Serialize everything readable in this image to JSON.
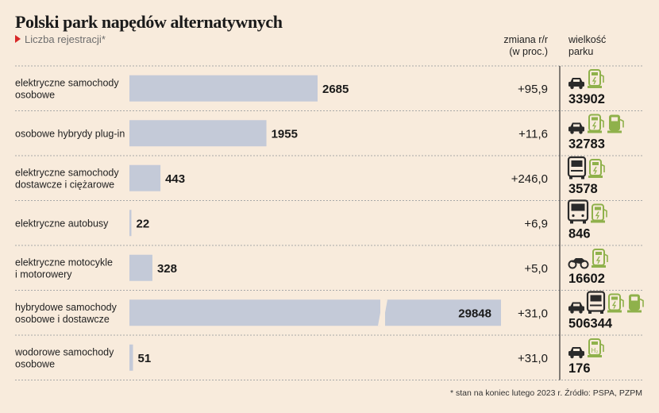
{
  "title": "Polski park napędów alternatywnych",
  "subtitle": "Liczba rejestracji*",
  "headers": {
    "change_line1": "zmiana r/r",
    "change_line2": "(w proc.)",
    "fleet_line1": "wielkość",
    "fleet_line2": "parku"
  },
  "footnote": "* stan na koniec lutego 2023 r. Źródło: PSPA, PZPM",
  "colors": {
    "background": "#f8ebdc",
    "bar": "#c4cad8",
    "icon_green": "#8fb14b",
    "title_marker": "#d72727",
    "divider": "#a8a8a8"
  },
  "chart_data": {
    "type": "bar",
    "orientation": "horizontal",
    "axis_break": true,
    "grid": false,
    "categories": [
      [
        "elektryczne samochody",
        "osobowe"
      ],
      [
        "osobowe hybrydy plug-in"
      ],
      [
        "elektryczne samochody",
        "dostawcze i ciężarowe"
      ],
      [
        "elektryczne autobusy"
      ],
      [
        "elektryczne motocykle",
        "i motorowery"
      ],
      [
        "hybrydowe samochody",
        "osobowe i dostawcze"
      ],
      [
        "wodorowe samochody",
        "osobowe"
      ]
    ],
    "values": [
      2685,
      1955,
      443,
      22,
      328,
      29848,
      51
    ],
    "value_labels": [
      "2685",
      "1955",
      "443",
      "22",
      "328",
      "29848",
      "51"
    ],
    "change_yoy": [
      "+95,9",
      "+11,6",
      "+246,0",
      "+6,9",
      "+5,0",
      "+31,0",
      "+31,0"
    ],
    "fleet_size": [
      "33902",
      "32783",
      "3578",
      "846",
      "16602",
      "506344",
      "176"
    ],
    "fleet_icons": [
      [
        "car-icon",
        "charger-icon"
      ],
      [
        "car-icon",
        "charger-icon",
        "fuel-pump-icon"
      ],
      [
        "truck-icon",
        "charger-icon"
      ],
      [
        "bus-icon",
        "charger-icon"
      ],
      [
        "motorcycle-icon",
        "charger-icon"
      ],
      [
        "car-icon",
        "truck-icon",
        "charger-icon",
        "fuel-pump-icon"
      ],
      [
        "car-icon",
        "hydrogen-station-icon"
      ]
    ],
    "hydrogen_label": "H₂"
  }
}
